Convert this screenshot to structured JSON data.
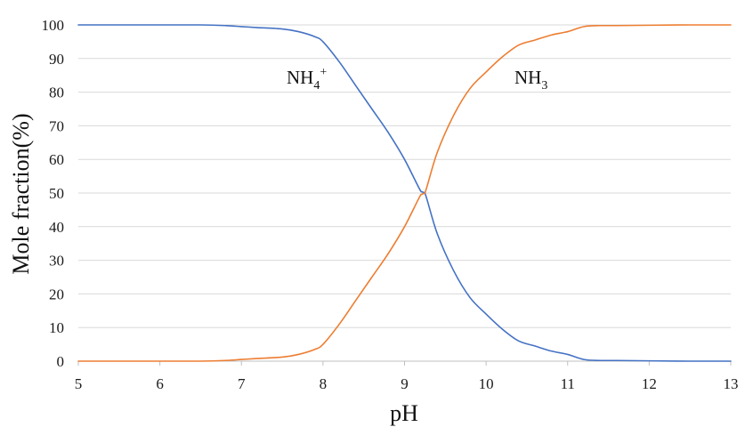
{
  "chart_data": {
    "type": "line",
    "title": "",
    "xlabel": "pH",
    "ylabel": "Mole fraction(%)",
    "xlim": [
      5,
      13
    ],
    "ylim": [
      0,
      100
    ],
    "x_ticks": [
      5,
      6,
      7,
      8,
      9,
      10,
      11,
      12,
      13
    ],
    "y_ticks": [
      0,
      10,
      20,
      30,
      40,
      50,
      60,
      70,
      80,
      90,
      100
    ],
    "grid": "horizontal",
    "series": [
      {
        "name": "NH4+",
        "label_base": "NH",
        "label_sub": "4",
        "label_sup": "+",
        "color": "#4472C4",
        "x": [
          5,
          5.5,
          6,
          6.5,
          6.8,
          7,
          7.2,
          7.5,
          7.7,
          7.9,
          8,
          8.2,
          8.4,
          8.6,
          8.8,
          9,
          9.2,
          9.25,
          9.4,
          9.6,
          9.8,
          10,
          10.2,
          10.4,
          10.6,
          10.8,
          11,
          11.2,
          11.4,
          11.6,
          12,
          12.5,
          13
        ],
        "values": [
          100,
          100,
          100,
          100,
          99.8,
          99.5,
          99.2,
          98.8,
          98,
          96.5,
          95,
          89,
          82,
          75,
          68,
          60,
          50.5,
          50,
          38,
          27,
          19,
          14,
          9.5,
          6,
          4.5,
          3,
          2,
          0.5,
          0.2,
          0.2,
          0.1,
          0,
          0
        ]
      },
      {
        "name": "NH3",
        "label_base": "NH",
        "label_sub": "3",
        "label_sup": "",
        "color": "#ED7D31",
        "x": [
          5,
          5.5,
          6,
          6.5,
          6.8,
          7,
          7.2,
          7.5,
          7.7,
          7.9,
          8,
          8.2,
          8.4,
          8.6,
          8.8,
          9,
          9.2,
          9.25,
          9.4,
          9.6,
          9.8,
          10,
          10.2,
          10.4,
          10.6,
          10.8,
          11,
          11.2,
          11.4,
          11.6,
          12,
          12.5,
          13
        ],
        "values": [
          0,
          0,
          0,
          0,
          0.2,
          0.5,
          0.8,
          1.2,
          2,
          3.5,
          5,
          11,
          18,
          25,
          32,
          40,
          49.5,
          50,
          62,
          73,
          81,
          86,
          90.5,
          94,
          95.5,
          97,
          98,
          99.5,
          99.8,
          99.8,
          99.9,
          100,
          100
        ]
      }
    ]
  }
}
